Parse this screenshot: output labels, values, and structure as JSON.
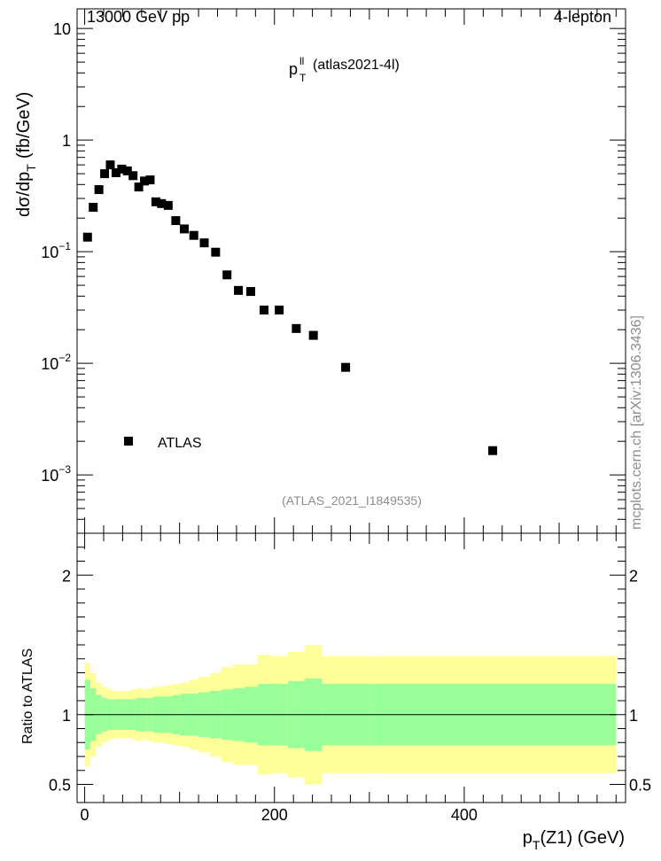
{
  "header": {
    "energy_label": "13000 GeV pp",
    "channel_label": "4-lepton"
  },
  "plot_title": {
    "main": "p",
    "superscript": "ll",
    "subscript": "T",
    "suffix": "(atlas2021-4l)"
  },
  "analysis_label": "(ATLAS_2021_I1849535)",
  "side_label": "mcplots.cern.ch [arXiv:1306.3436]",
  "legend": {
    "entry_label": "ATLAS"
  },
  "axes": {
    "upper_ylabel": {
      "main": "dσ/dp",
      "sub": "T",
      "unit": "(fb/GeV)"
    },
    "lower_ylabel": "Ratio to ATLAS",
    "xlabel": {
      "main": "p",
      "sub": "T",
      "rest": "(Z1) (GeV)"
    },
    "upper_ticks": [
      {
        "value": 10,
        "base": "10",
        "exp": ""
      },
      {
        "value": 1,
        "base": "1",
        "exp": ""
      },
      {
        "value": 0.1,
        "base": "10",
        "exp": "−1"
      },
      {
        "value": 0.01,
        "base": "10",
        "exp": "−2"
      },
      {
        "value": 0.001,
        "base": "10",
        "exp": "−3"
      }
    ],
    "ratio_ticks": [
      {
        "value": 2,
        "label": "2"
      },
      {
        "value": 1,
        "label": "1"
      },
      {
        "value": 0.5,
        "label": "0.5"
      }
    ],
    "x_ticks": [
      {
        "value": 0,
        "label": "0"
      },
      {
        "value": 200,
        "label": "200"
      },
      {
        "value": 400,
        "label": "400"
      }
    ]
  },
  "chart_data": {
    "type": "scatter",
    "title": "p_T^ll (atlas2021-4l)",
    "xlabel": "p_T(Z1) (GeV)",
    "ylabel": "dσ/dp_T (fb/GeV)",
    "yscale": "log",
    "xlim": [
      -8,
      570
    ],
    "ylim": [
      0.0003,
      15
    ],
    "ratio_ylim": [
      0.37,
      2.3
    ],
    "ratio_ylabel": "Ratio to ATLAS",
    "series": [
      {
        "name": "ATLAS",
        "bins": [
          {
            "lo": 0,
            "hi": 6,
            "x": 3,
            "y": 0.135,
            "stat": 0.25,
            "total": 0.37
          },
          {
            "lo": 6,
            "hi": 12,
            "x": 9,
            "y": 0.25,
            "stat": 0.19,
            "total": 0.3
          },
          {
            "lo": 12,
            "hi": 18,
            "x": 15,
            "y": 0.36,
            "stat": 0.14,
            "total": 0.23
          },
          {
            "lo": 18,
            "hi": 24,
            "x": 21,
            "y": 0.5,
            "stat": 0.12,
            "total": 0.2
          },
          {
            "lo": 24,
            "hi": 30,
            "x": 27,
            "y": 0.6,
            "stat": 0.11,
            "total": 0.18
          },
          {
            "lo": 30,
            "hi": 36,
            "x": 33,
            "y": 0.51,
            "stat": 0.11,
            "total": 0.17
          },
          {
            "lo": 36,
            "hi": 42,
            "x": 39,
            "y": 0.55,
            "stat": 0.11,
            "total": 0.17
          },
          {
            "lo": 42,
            "hi": 48,
            "x": 45,
            "y": 0.53,
            "stat": 0.11,
            "total": 0.17
          },
          {
            "lo": 48,
            "hi": 54,
            "x": 51,
            "y": 0.48,
            "stat": 0.11,
            "total": 0.18
          },
          {
            "lo": 54,
            "hi": 60,
            "x": 57,
            "y": 0.38,
            "stat": 0.12,
            "total": 0.19
          },
          {
            "lo": 60,
            "hi": 66,
            "x": 63,
            "y": 0.43,
            "stat": 0.12,
            "total": 0.18
          },
          {
            "lo": 66,
            "hi": 72,
            "x": 69,
            "y": 0.44,
            "stat": 0.12,
            "total": 0.19
          },
          {
            "lo": 72,
            "hi": 78,
            "x": 75,
            "y": 0.28,
            "stat": 0.13,
            "total": 0.2
          },
          {
            "lo": 78,
            "hi": 84,
            "x": 81,
            "y": 0.27,
            "stat": 0.13,
            "total": 0.2
          },
          {
            "lo": 84,
            "hi": 92,
            "x": 88,
            "y": 0.26,
            "stat": 0.13,
            "total": 0.21
          },
          {
            "lo": 92,
            "hi": 100,
            "x": 96,
            "y": 0.19,
            "stat": 0.14,
            "total": 0.22
          },
          {
            "lo": 100,
            "hi": 110,
            "x": 105,
            "y": 0.16,
            "stat": 0.15,
            "total": 0.23
          },
          {
            "lo": 110,
            "hi": 120,
            "x": 115,
            "y": 0.14,
            "stat": 0.15,
            "total": 0.25
          },
          {
            "lo": 120,
            "hi": 132,
            "x": 126,
            "y": 0.12,
            "stat": 0.16,
            "total": 0.27
          },
          {
            "lo": 132,
            "hi": 144,
            "x": 138,
            "y": 0.099,
            "stat": 0.17,
            "total": 0.3
          },
          {
            "lo": 144,
            "hi": 156,
            "x": 150,
            "y": 0.062,
            "stat": 0.18,
            "total": 0.34
          },
          {
            "lo": 156,
            "hi": 168,
            "x": 162,
            "y": 0.045,
            "stat": 0.19,
            "total": 0.36
          },
          {
            "lo": 168,
            "hi": 182,
            "x": 175,
            "y": 0.044,
            "stat": 0.2,
            "total": 0.36
          },
          {
            "lo": 182,
            "hi": 196,
            "x": 189,
            "y": 0.03,
            "stat": 0.22,
            "total": 0.43
          },
          {
            "lo": 196,
            "hi": 214,
            "x": 205,
            "y": 0.03,
            "stat": 0.22,
            "total": 0.42
          },
          {
            "lo": 214,
            "hi": 232,
            "x": 223,
            "y": 0.0205,
            "stat": 0.24,
            "total": 0.45
          },
          {
            "lo": 232,
            "hi": 250,
            "x": 241,
            "y": 0.0178,
            "stat": 0.26,
            "total": 0.5
          },
          {
            "lo": 250,
            "hi": 300,
            "x": 275,
            "y": 0.0092,
            "stat": 0.22,
            "total": 0.42
          },
          {
            "lo": 300,
            "hi": 560,
            "x": 430,
            "y": 0.00165,
            "stat": 0.22,
            "total": 0.42
          }
        ]
      }
    ]
  }
}
